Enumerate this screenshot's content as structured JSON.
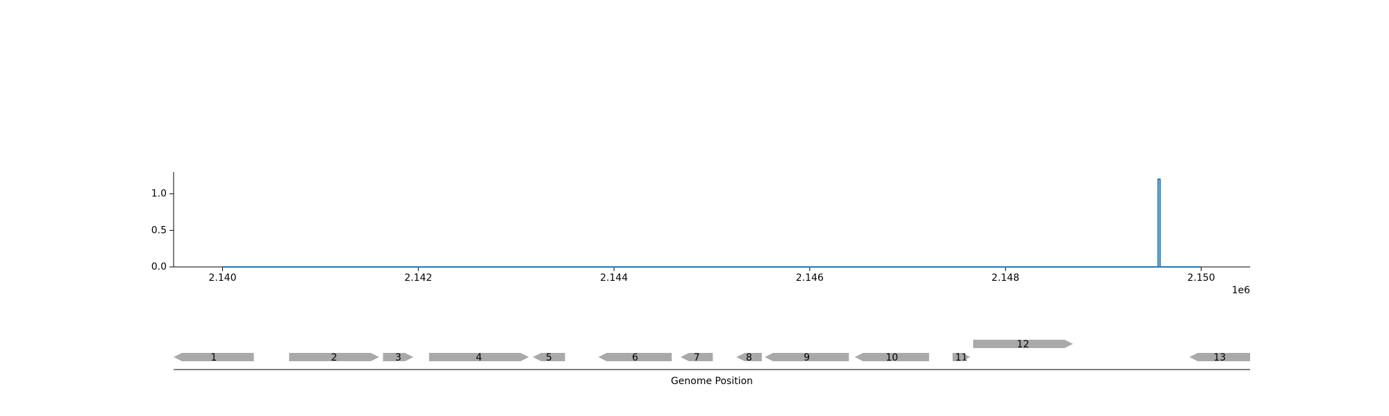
{
  "chart_data": [
    {
      "type": "line",
      "title": "",
      "xlabel": "",
      "ylabel": "",
      "x_offset_label": "1e6",
      "xlim": [
        2139500,
        2150500
      ],
      "ylim": [
        0,
        1.3
      ],
      "xticks": [
        2.14,
        2.142,
        2.144,
        2.146,
        2.148,
        2.15
      ],
      "xtick_labels": [
        "2.140",
        "2.142",
        "2.144",
        "2.146",
        "2.148",
        "2.150"
      ],
      "yticks": [
        0.0,
        0.5,
        1.0
      ],
      "ytick_labels": [
        "0.0",
        "0.5",
        "1.0"
      ],
      "grid": false,
      "color": "#1f77b4",
      "series": [
        {
          "x": [
            2140000,
            2149560,
            2149560,
            2149580,
            2149580,
            2150000
          ],
          "y": [
            0,
            0,
            1.2,
            1.2,
            0,
            0
          ]
        }
      ]
    },
    {
      "type": "gene-track",
      "xlabel": "Genome Position",
      "xlim": [
        2139500,
        2150500
      ],
      "color": "#a9a9a9",
      "genes": [
        {
          "label": "1",
          "start": 2139500,
          "end": 2140320,
          "strand": -1,
          "row": 0
        },
        {
          "label": "2",
          "start": 2140680,
          "end": 2141600,
          "strand": 1,
          "row": 0
        },
        {
          "label": "3",
          "start": 2141640,
          "end": 2141950,
          "strand": 1,
          "row": 0
        },
        {
          "label": "4",
          "start": 2142110,
          "end": 2143130,
          "strand": 1,
          "row": 0
        },
        {
          "label": "5",
          "start": 2143170,
          "end": 2143500,
          "strand": -1,
          "row": 0
        },
        {
          "label": "6",
          "start": 2143840,
          "end": 2144590,
          "strand": -1,
          "row": 0
        },
        {
          "label": "7",
          "start": 2144680,
          "end": 2145010,
          "strand": -1,
          "row": 0
        },
        {
          "label": "8",
          "start": 2145250,
          "end": 2145510,
          "strand": -1,
          "row": 0
        },
        {
          "label": "9",
          "start": 2145540,
          "end": 2146400,
          "strand": -1,
          "row": 0
        },
        {
          "label": "10",
          "start": 2146460,
          "end": 2147220,
          "strand": -1,
          "row": 0
        },
        {
          "label": "11",
          "start": 2147460,
          "end": 2147640,
          "strand": 1,
          "row": 0
        },
        {
          "label": "12",
          "start": 2147670,
          "end": 2148690,
          "strand": 1,
          "row": 1
        },
        {
          "label": "13",
          "start": 2149880,
          "end": 2151350,
          "strand": -1,
          "row": 0
        }
      ]
    }
  ]
}
